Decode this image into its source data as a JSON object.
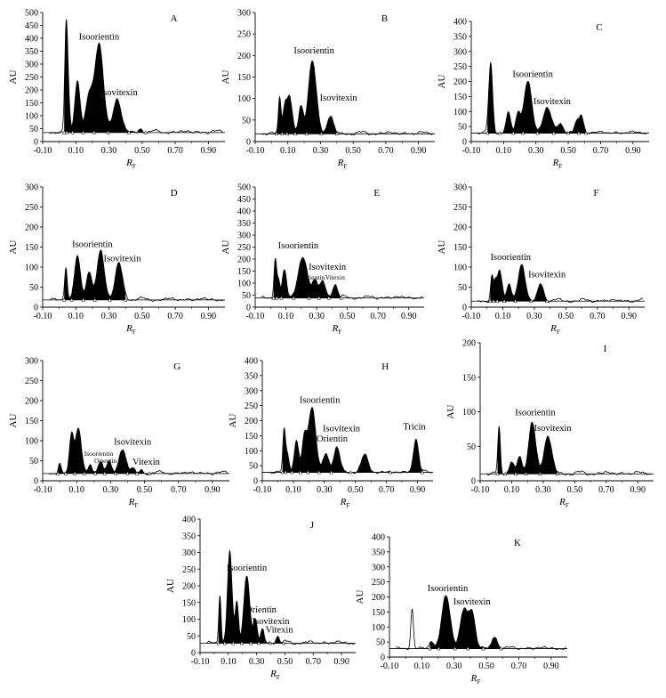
{
  "figure": {
    "ylabel": "AU",
    "xlabel_main": "R",
    "xlabel_sub": "F"
  },
  "chart_data": [
    {
      "type": "area",
      "label": "A",
      "xlim": [
        -0.1,
        1.0
      ],
      "ylim": [
        0,
        500
      ],
      "xticks": [
        "-0.10",
        "0.10",
        "0.30",
        "0.50",
        "0.70",
        "0.90"
      ],
      "yticks": [
        "0",
        "50",
        "100",
        "150",
        "200",
        "250",
        "300",
        "350",
        "400",
        "450",
        "500"
      ],
      "baseline": 35,
      "peaks": [
        {
          "x": 0.04,
          "y": 330,
          "w": 0.008
        },
        {
          "x": 0.05,
          "y": 240,
          "w": 0.01
        },
        {
          "x": 0.11,
          "y": 235,
          "w": 0.016
        },
        {
          "x": 0.18,
          "y": 170,
          "w": 0.02
        },
        {
          "x": 0.24,
          "y": 380,
          "w": 0.026
        },
        {
          "x": 0.35,
          "y": 165,
          "w": 0.024
        },
        {
          "x": 0.49,
          "y": 50,
          "w": 0.012
        }
      ],
      "fill_range": [
        0.03,
        0.52
      ],
      "annotations": [
        {
          "text": "Isoorientin",
          "x": 0.24,
          "y": 395,
          "size": "large"
        },
        {
          "text": "Isovitexin",
          "x": 0.36,
          "y": 180,
          "size": "large"
        }
      ]
    },
    {
      "type": "area",
      "label": "B",
      "xlim": [
        -0.1,
        1.0
      ],
      "ylim": [
        0,
        300
      ],
      "xticks": [
        "-0.10",
        "0.10",
        "0.30",
        "0.50",
        "0.70",
        "0.90"
      ],
      "yticks": [
        "0",
        "50",
        "100",
        "150",
        "200",
        "250",
        "300"
      ],
      "baseline": 18,
      "peaks": [
        {
          "x": 0.05,
          "y": 100,
          "w": 0.008
        },
        {
          "x": 0.08,
          "y": 75,
          "w": 0.012
        },
        {
          "x": 0.11,
          "y": 105,
          "w": 0.016
        },
        {
          "x": 0.18,
          "y": 80,
          "w": 0.014
        },
        {
          "x": 0.25,
          "y": 188,
          "w": 0.024
        },
        {
          "x": 0.36,
          "y": 60,
          "w": 0.018
        }
      ],
      "fill_range": [
        0.03,
        0.4
      ],
      "annotations": [
        {
          "text": "Isoorientin",
          "x": 0.26,
          "y": 205,
          "size": "large"
        },
        {
          "text": "Isovitexin",
          "x": 0.41,
          "y": 95,
          "size": "large"
        }
      ]
    },
    {
      "type": "area",
      "label": "C",
      "xlim": [
        -0.1,
        1.0
      ],
      "ylim": [
        0,
        400
      ],
      "xticks": [
        "-0.10",
        "0.10",
        "0.30",
        "0.50",
        "0.70",
        "0.90"
      ],
      "yticks": [
        "0",
        "50",
        "100",
        "150",
        "200",
        "250",
        "300",
        "350",
        "400"
      ],
      "baseline": 28,
      "peaks": [
        {
          "x": 0.02,
          "y": 260,
          "w": 0.012
        },
        {
          "x": 0.13,
          "y": 95,
          "w": 0.014
        },
        {
          "x": 0.19,
          "y": 95,
          "w": 0.014
        },
        {
          "x": 0.25,
          "y": 200,
          "w": 0.024
        },
        {
          "x": 0.37,
          "y": 110,
          "w": 0.026
        },
        {
          "x": 0.45,
          "y": 60,
          "w": 0.018
        },
        {
          "x": 0.55,
          "y": 60,
          "w": 0.012
        },
        {
          "x": 0.58,
          "y": 90,
          "w": 0.014
        }
      ],
      "fill_range": [
        0.0,
        0.61
      ],
      "annotations": [
        {
          "text": "Isoorientin",
          "x": 0.28,
          "y": 215,
          "size": "large"
        },
        {
          "text": "Isovitexin",
          "x": 0.4,
          "y": 125,
          "size": "large"
        }
      ]
    },
    {
      "type": "area",
      "label": "D",
      "xlim": [
        -0.1,
        1.0
      ],
      "ylim": [
        0,
        300
      ],
      "xticks": [
        "-0.10",
        "0.10",
        "0.30",
        "0.50",
        "0.70",
        "0.90"
      ],
      "yticks": [
        "0",
        "50",
        "100",
        "150",
        "200",
        "250",
        "300"
      ],
      "baseline": 18,
      "peaks": [
        {
          "x": 0.04,
          "y": 100,
          "w": 0.008
        },
        {
          "x": 0.11,
          "y": 125,
          "w": 0.018
        },
        {
          "x": 0.18,
          "y": 90,
          "w": 0.016
        },
        {
          "x": 0.25,
          "y": 140,
          "w": 0.022
        },
        {
          "x": 0.36,
          "y": 110,
          "w": 0.022
        }
      ],
      "fill_range": [
        0.03,
        0.4
      ],
      "annotations": [
        {
          "text": "Isoorientin",
          "x": 0.2,
          "y": 150,
          "size": "large"
        },
        {
          "text": "Isovitexin",
          "x": 0.38,
          "y": 115,
          "size": "large"
        }
      ]
    },
    {
      "type": "area",
      "label": "E",
      "xlim": [
        -0.1,
        1.0
      ],
      "ylim": [
        0,
        500
      ],
      "xticks": [
        "-0.10",
        "0.10",
        "0.30",
        "0.50",
        "0.70",
        "0.90"
      ],
      "yticks": [
        "0",
        "50",
        "100",
        "150",
        "200",
        "250",
        "300",
        "350",
        "400",
        "450",
        "500"
      ],
      "baseline": 38,
      "peaks": [
        {
          "x": 0.03,
          "y": 195,
          "w": 0.008
        },
        {
          "x": 0.05,
          "y": 115,
          "w": 0.01
        },
        {
          "x": 0.09,
          "y": 150,
          "w": 0.014
        },
        {
          "x": 0.21,
          "y": 205,
          "w": 0.03
        },
        {
          "x": 0.29,
          "y": 110,
          "w": 0.018
        },
        {
          "x": 0.34,
          "y": 105,
          "w": 0.018
        },
        {
          "x": 0.42,
          "y": 95,
          "w": 0.016
        }
      ],
      "fill_range": [
        0.02,
        0.46
      ],
      "annotations": [
        {
          "text": "Isoorientin",
          "x": 0.18,
          "y": 245,
          "size": "large"
        },
        {
          "text": "Isovitexin",
          "x": 0.37,
          "y": 155,
          "size": "large"
        },
        {
          "text": "Orientin",
          "x": 0.28,
          "y": 115,
          "size": "small"
        },
        {
          "text": "Vitexin",
          "x": 0.42,
          "y": 115,
          "size": "small"
        }
      ]
    },
    {
      "type": "area",
      "label": "F",
      "xlim": [
        -0.1,
        1.0
      ],
      "ylim": [
        0,
        300
      ],
      "xticks": [
        "-0.10",
        "0.10",
        "0.30",
        "0.50",
        "0.70",
        "0.90"
      ],
      "yticks": [
        "0",
        "50",
        "100",
        "150",
        "200",
        "250",
        "300"
      ],
      "baseline": 15,
      "peaks": [
        {
          "x": 0.03,
          "y": 72,
          "w": 0.008
        },
        {
          "x": 0.05,
          "y": 55,
          "w": 0.01
        },
        {
          "x": 0.08,
          "y": 88,
          "w": 0.016
        },
        {
          "x": 0.14,
          "y": 60,
          "w": 0.014
        },
        {
          "x": 0.22,
          "y": 105,
          "w": 0.022
        },
        {
          "x": 0.34,
          "y": 58,
          "w": 0.018
        }
      ],
      "fill_range": [
        0.02,
        0.38
      ],
      "annotations": [
        {
          "text": "Isoorientin",
          "x": 0.15,
          "y": 118,
          "size": "large"
        },
        {
          "text": "Isovitexin",
          "x": 0.38,
          "y": 75,
          "size": "large"
        }
      ]
    },
    {
      "type": "area",
      "label": "G",
      "xlim": [
        -0.1,
        1.0
      ],
      "ylim": [
        0,
        300
      ],
      "xticks": [
        "-0.10",
        "0.10",
        "0.30",
        "0.50",
        "0.70",
        "0.90"
      ],
      "yticks": [
        "0",
        "50",
        "100",
        "150",
        "200",
        "250",
        "300"
      ],
      "baseline": 18,
      "peaks": [
        {
          "x": 0.0,
          "y": 45,
          "w": 0.008
        },
        {
          "x": 0.07,
          "y": 110,
          "w": 0.012
        },
        {
          "x": 0.11,
          "y": 132,
          "w": 0.018
        },
        {
          "x": 0.18,
          "y": 40,
          "w": 0.01
        },
        {
          "x": 0.24,
          "y": 48,
          "w": 0.014
        },
        {
          "x": 0.29,
          "y": 48,
          "w": 0.014
        },
        {
          "x": 0.37,
          "y": 80,
          "w": 0.02
        },
        {
          "x": 0.43,
          "y": 30,
          "w": 0.012
        },
        {
          "x": 0.48,
          "y": 28,
          "w": 0.01
        }
      ],
      "fill_range": [
        -0.01,
        0.53
      ],
      "annotations": [
        {
          "text": "Isovitexin",
          "x": 0.43,
          "y": 90,
          "size": "large"
        },
        {
          "text": "Isoorientin",
          "x": 0.23,
          "y": 62,
          "size": "small"
        },
        {
          "text": "Orientin",
          "x": 0.27,
          "y": 45,
          "size": "small"
        },
        {
          "text": "Vitexin",
          "x": 0.51,
          "y": 40,
          "size": "large"
        }
      ]
    },
    {
      "type": "area",
      "label": "H",
      "xlim": [
        -0.1,
        1.0
      ],
      "ylim": [
        0,
        400
      ],
      "xticks": [
        "-0.10",
        "0.10",
        "0.30",
        "0.50",
        "0.70",
        "0.90"
      ],
      "yticks": [
        "0",
        "50",
        "100",
        "150",
        "200",
        "250",
        "300",
        "350",
        "400"
      ],
      "baseline": 28,
      "peaks": [
        {
          "x": 0.04,
          "y": 155,
          "w": 0.008
        },
        {
          "x": 0.06,
          "y": 95,
          "w": 0.012
        },
        {
          "x": 0.12,
          "y": 135,
          "w": 0.014
        },
        {
          "x": 0.17,
          "y": 135,
          "w": 0.014
        },
        {
          "x": 0.22,
          "y": 245,
          "w": 0.024
        },
        {
          "x": 0.31,
          "y": 90,
          "w": 0.018
        },
        {
          "x": 0.38,
          "y": 110,
          "w": 0.02
        },
        {
          "x": 0.56,
          "y": 85,
          "w": 0.022
        },
        {
          "x": 0.89,
          "y": 140,
          "w": 0.016
        }
      ],
      "fill_range": [
        0.03,
        0.93
      ],
      "annotations": [
        {
          "text": "Isoorientin",
          "x": 0.27,
          "y": 260,
          "size": "large"
        },
        {
          "text": "Isovitexin",
          "x": 0.41,
          "y": 165,
          "size": "large"
        },
        {
          "text": "Orientin",
          "x": 0.35,
          "y": 130,
          "size": "large"
        },
        {
          "text": "Tricin",
          "x": 0.88,
          "y": 170,
          "size": "large"
        }
      ]
    },
    {
      "type": "area",
      "label": "I",
      "xlim": [
        -0.1,
        1.0
      ],
      "ylim": [
        0,
        200
      ],
      "xticks": [
        "-0.10",
        "0.10",
        "0.30",
        "0.50",
        "0.70",
        "0.90"
      ],
      "yticks": [
        "0",
        "50",
        "100",
        "150",
        "200"
      ],
      "baseline": 10,
      "peaks": [
        {
          "x": 0.02,
          "y": 78,
          "w": 0.008
        },
        {
          "x": 0.1,
          "y": 28,
          "w": 0.014
        },
        {
          "x": 0.15,
          "y": 35,
          "w": 0.014
        },
        {
          "x": 0.23,
          "y": 85,
          "w": 0.022
        },
        {
          "x": 0.33,
          "y": 65,
          "w": 0.024
        }
      ],
      "fill_range": [
        0.01,
        0.39
      ],
      "annotations": [
        {
          "text": "Isoorientin",
          "x": 0.25,
          "y": 95,
          "size": "large"
        },
        {
          "text": "Isovitexin",
          "x": 0.36,
          "y": 72,
          "size": "large"
        }
      ]
    },
    {
      "type": "area",
      "label": "J",
      "xlim": [
        -0.1,
        1.0
      ],
      "ylim": [
        0,
        400
      ],
      "xticks": [
        "-0.10",
        "0.10",
        "0.30",
        "0.50",
        "0.70",
        "0.90"
      ],
      "yticks": [
        "0",
        "50",
        "100",
        "150",
        "200",
        "250",
        "300",
        "350",
        "400"
      ],
      "baseline": 28,
      "peaks": [
        {
          "x": 0.04,
          "y": 175,
          "w": 0.008
        },
        {
          "x": 0.11,
          "y": 300,
          "w": 0.016
        },
        {
          "x": 0.16,
          "y": 150,
          "w": 0.012
        },
        {
          "x": 0.23,
          "y": 230,
          "w": 0.02
        },
        {
          "x": 0.29,
          "y": 100,
          "w": 0.014
        },
        {
          "x": 0.34,
          "y": 70,
          "w": 0.012
        },
        {
          "x": 0.45,
          "y": 50,
          "w": 0.012
        }
      ],
      "fill_range": [
        0.03,
        0.49
      ],
      "annotations": [
        {
          "text": "Isoorientin",
          "x": 0.23,
          "y": 245,
          "size": "large"
        },
        {
          "text": "Orientin",
          "x": 0.33,
          "y": 120,
          "size": "large"
        },
        {
          "text": "Isovitexin",
          "x": 0.4,
          "y": 85,
          "size": "large"
        },
        {
          "text": "Vitexin",
          "x": 0.46,
          "y": 60,
          "size": "large"
        }
      ]
    },
    {
      "type": "area",
      "label": "K",
      "xlim": [
        -0.1,
        1.0
      ],
      "ylim": [
        0,
        400
      ],
      "xticks": [
        "-0.10",
        "0.10",
        "0.30",
        "0.50",
        "0.70",
        "0.90"
      ],
      "yticks": [
        "0",
        "50",
        "100",
        "150",
        "200",
        "250",
        "300",
        "350",
        "400"
      ],
      "baseline": 28,
      "peaks": [
        {
          "x": 0.04,
          "y": 160,
          "w": 0.008
        },
        {
          "x": 0.16,
          "y": 55,
          "w": 0.012
        },
        {
          "x": 0.25,
          "y": 205,
          "w": 0.026
        },
        {
          "x": 0.36,
          "y": 155,
          "w": 0.022
        },
        {
          "x": 0.41,
          "y": 150,
          "w": 0.02
        },
        {
          "x": 0.55,
          "y": 70,
          "w": 0.016
        }
      ],
      "fill_range": [
        0.15,
        0.59
      ],
      "annotations": [
        {
          "text": "Isoorientin",
          "x": 0.26,
          "y": 220,
          "size": "large"
        },
        {
          "text": "Isovitexin",
          "x": 0.41,
          "y": 175,
          "size": "large"
        }
      ]
    }
  ]
}
